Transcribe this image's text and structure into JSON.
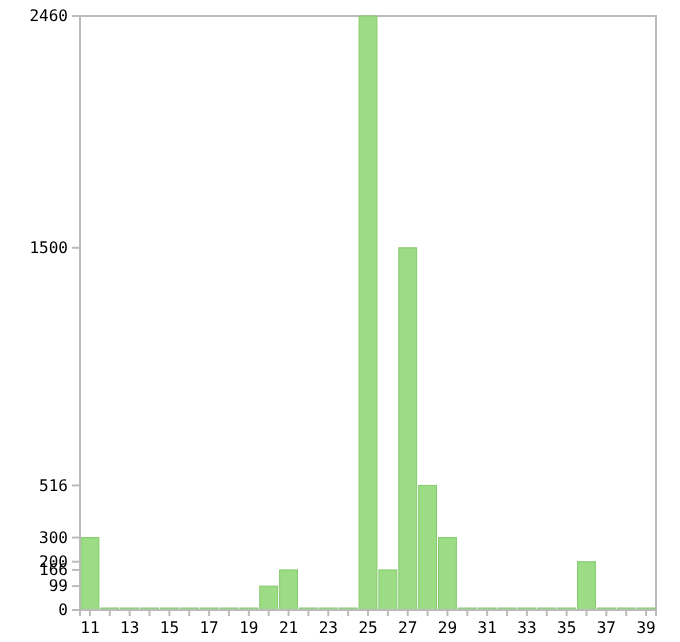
{
  "chart_data": {
    "type": "bar",
    "categories": [
      "11",
      null,
      "13",
      null,
      "15",
      null,
      "17",
      null,
      "19",
      null,
      "21",
      null,
      "23",
      null,
      "25",
      null,
      "27",
      null,
      "29",
      null,
      "31",
      null,
      "33",
      null,
      "35",
      null,
      "37",
      null,
      "39"
    ],
    "values": [
      300,
      0,
      0,
      0,
      0,
      0,
      0,
      0,
      0,
      99,
      166,
      0,
      0,
      0,
      2460,
      166,
      1500,
      516,
      300,
      0,
      0,
      0,
      0,
      0,
      0,
      200,
      0,
      0,
      0
    ],
    "color": "#9bdc84",
    "ylim": [
      0,
      2460
    ],
    "yticks": [
      0,
      99,
      166,
      200,
      300,
      516,
      1500,
      2460
    ],
    "grid": false
  }
}
